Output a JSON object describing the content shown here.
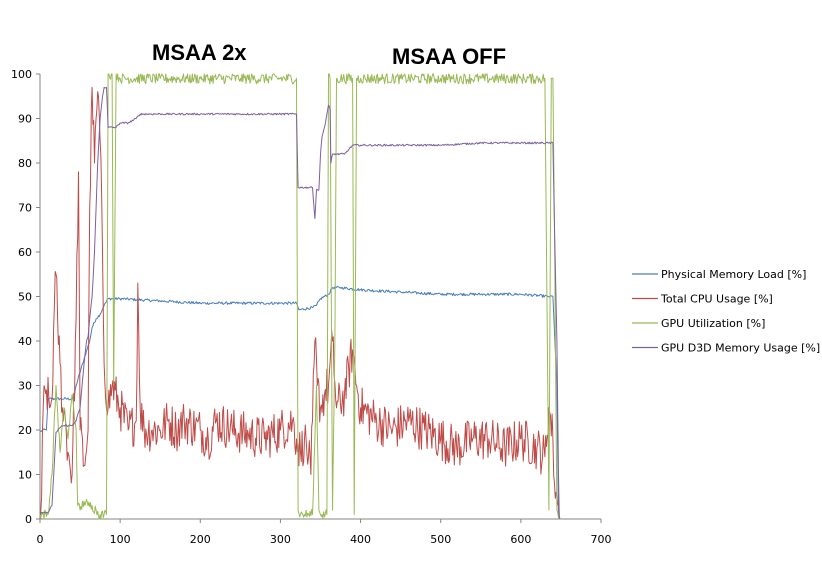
{
  "chart_data": {
    "type": "line",
    "title": "",
    "xlabel": "",
    "ylabel": "",
    "xlim": [
      0,
      700
    ],
    "ylim": [
      0,
      100
    ],
    "x_ticks": [
      0,
      100,
      200,
      300,
      400,
      500,
      600,
      700
    ],
    "y_ticks": [
      0,
      10,
      20,
      30,
      40,
      50,
      60,
      70,
      80,
      90,
      100
    ],
    "grid": false,
    "legend_position": "right",
    "annotations": [
      {
        "text": "MSAA 2x",
        "x": 140,
        "y": 110
      },
      {
        "text": "MSAA OFF",
        "x": 440,
        "y": 108
      }
    ],
    "series": [
      {
        "name": "Physical Memory Load [%]",
        "color": "#4a7ebb",
        "noise": 0.3,
        "points": [
          [
            0,
            19.5
          ],
          [
            3,
            20
          ],
          [
            8,
            20
          ],
          [
            10,
            27
          ],
          [
            30,
            27
          ],
          [
            42,
            27
          ],
          [
            45,
            30
          ],
          [
            55,
            36
          ],
          [
            62,
            40
          ],
          [
            65,
            43
          ],
          [
            70,
            45
          ],
          [
            75,
            46
          ],
          [
            80,
            48
          ],
          [
            85,
            49.5
          ],
          [
            100,
            49.5
          ],
          [
            150,
            49
          ],
          [
            200,
            48.5
          ],
          [
            250,
            48.5
          ],
          [
            300,
            48.5
          ],
          [
            320,
            48.5
          ],
          [
            323,
            47
          ],
          [
            340,
            47.5
          ],
          [
            345,
            48
          ],
          [
            350,
            49.5
          ],
          [
            360,
            50.5
          ],
          [
            365,
            52
          ],
          [
            375,
            52
          ],
          [
            400,
            51.5
          ],
          [
            450,
            51
          ],
          [
            500,
            50.5
          ],
          [
            550,
            50.5
          ],
          [
            600,
            50.5
          ],
          [
            635,
            50
          ],
          [
            640,
            50
          ],
          [
            645,
            30
          ],
          [
            647,
            0.5
          ],
          [
            650,
            0
          ]
        ]
      },
      {
        "name": "Total CPU Usage [%]",
        "color": "#be4b48",
        "noise": 5,
        "points": [
          [
            0,
            0
          ],
          [
            2,
            5
          ],
          [
            4,
            25
          ],
          [
            8,
            29
          ],
          [
            12,
            25
          ],
          [
            15,
            27
          ],
          [
            18,
            48
          ],
          [
            20,
            55
          ],
          [
            22,
            45
          ],
          [
            25,
            35
          ],
          [
            28,
            25
          ],
          [
            32,
            22
          ],
          [
            35,
            15
          ],
          [
            40,
            10
          ],
          [
            45,
            45
          ],
          [
            48,
            78
          ],
          [
            50,
            20
          ],
          [
            55,
            12
          ],
          [
            60,
            20
          ],
          [
            62,
            70
          ],
          [
            65,
            97
          ],
          [
            68,
            80
          ],
          [
            70,
            90
          ],
          [
            73,
            95
          ],
          [
            75,
            85
          ],
          [
            78,
            60
          ],
          [
            80,
            35
          ],
          [
            85,
            25
          ],
          [
            90,
            30
          ],
          [
            100,
            25
          ],
          [
            110,
            20
          ],
          [
            120,
            22
          ],
          [
            122,
            53
          ],
          [
            125,
            25
          ],
          [
            130,
            20
          ],
          [
            140,
            20
          ],
          [
            150,
            20
          ],
          [
            160,
            22
          ],
          [
            170,
            20
          ],
          [
            180,
            22
          ],
          [
            200,
            20
          ],
          [
            210,
            18
          ],
          [
            220,
            22
          ],
          [
            240,
            20
          ],
          [
            260,
            19
          ],
          [
            280,
            18
          ],
          [
            300,
            20
          ],
          [
            315,
            22
          ],
          [
            320,
            18
          ],
          [
            325,
            15
          ],
          [
            330,
            18
          ],
          [
            335,
            14
          ],
          [
            338,
            10
          ],
          [
            340,
            22
          ],
          [
            343,
            40
          ],
          [
            346,
            30
          ],
          [
            350,
            25
          ],
          [
            355,
            28
          ],
          [
            360,
            30
          ],
          [
            365,
            40
          ],
          [
            370,
            25
          ],
          [
            380,
            28
          ],
          [
            390,
            38
          ],
          [
            395,
            30
          ],
          [
            400,
            25
          ],
          [
            420,
            22
          ],
          [
            440,
            20
          ],
          [
            460,
            22
          ],
          [
            480,
            20
          ],
          [
            500,
            18
          ],
          [
            520,
            16
          ],
          [
            540,
            18
          ],
          [
            560,
            18
          ],
          [
            580,
            16
          ],
          [
            600,
            18
          ],
          [
            620,
            16
          ],
          [
            630,
            14
          ],
          [
            635,
            25
          ],
          [
            640,
            18
          ],
          [
            642,
            8
          ],
          [
            645,
            5
          ],
          [
            648,
            0.5
          ],
          [
            650,
            0
          ]
        ]
      },
      {
        "name": "GPU Utilization [%]",
        "color": "#98b954",
        "noise": 1.2,
        "points": [
          [
            0,
            1
          ],
          [
            10,
            1
          ],
          [
            15,
            10
          ],
          [
            20,
            30
          ],
          [
            25,
            15
          ],
          [
            30,
            25
          ],
          [
            35,
            18
          ],
          [
            40,
            28
          ],
          [
            45,
            20
          ],
          [
            47,
            3
          ],
          [
            50,
            2
          ],
          [
            55,
            4
          ],
          [
            60,
            3
          ],
          [
            65,
            3
          ],
          [
            70,
            2
          ],
          [
            75,
            1
          ],
          [
            80,
            1
          ],
          [
            83,
            1
          ],
          [
            85,
            100
          ],
          [
            90,
            100
          ],
          [
            92,
            30
          ],
          [
            95,
            100
          ],
          [
            100,
            99
          ],
          [
            150,
            99
          ],
          [
            200,
            99
          ],
          [
            250,
            99
          ],
          [
            300,
            99
          ],
          [
            320,
            99
          ],
          [
            322,
            2
          ],
          [
            325,
            1
          ],
          [
            330,
            1
          ],
          [
            340,
            1
          ],
          [
            345,
            30
          ],
          [
            348,
            2
          ],
          [
            352,
            1
          ],
          [
            358,
            1
          ],
          [
            360,
            100
          ],
          [
            362,
            99
          ],
          [
            365,
            2
          ],
          [
            368,
            40
          ],
          [
            370,
            99
          ],
          [
            390,
            99
          ],
          [
            392,
            1
          ],
          [
            395,
            99
          ],
          [
            400,
            99
          ],
          [
            450,
            99
          ],
          [
            500,
            99
          ],
          [
            550,
            99
          ],
          [
            600,
            99
          ],
          [
            630,
            99
          ],
          [
            635,
            2
          ],
          [
            638,
            99
          ],
          [
            640,
            99
          ],
          [
            642,
            65
          ],
          [
            645,
            2
          ],
          [
            648,
            0.5
          ],
          [
            650,
            0
          ]
        ]
      },
      {
        "name": "GPU D3D Memory Usage [%]",
        "color": "#7d60a0",
        "noise": 0.2,
        "points": [
          [
            0,
            1.5
          ],
          [
            10,
            1.5
          ],
          [
            15,
            3
          ],
          [
            20,
            19.5
          ],
          [
            25,
            20.5
          ],
          [
            30,
            21
          ],
          [
            40,
            21
          ],
          [
            45,
            22
          ],
          [
            48,
            24
          ],
          [
            50,
            25
          ],
          [
            55,
            35
          ],
          [
            58,
            40
          ],
          [
            60,
            41
          ],
          [
            62,
            45
          ],
          [
            65,
            50
          ],
          [
            68,
            60
          ],
          [
            70,
            70
          ],
          [
            72,
            80
          ],
          [
            75,
            90
          ],
          [
            78,
            95
          ],
          [
            80,
            97
          ],
          [
            83,
            97
          ],
          [
            85,
            88
          ],
          [
            95,
            88
          ],
          [
            100,
            89
          ],
          [
            110,
            89
          ],
          [
            120,
            90
          ],
          [
            125,
            91
          ],
          [
            150,
            91
          ],
          [
            200,
            91
          ],
          [
            250,
            91
          ],
          [
            300,
            91
          ],
          [
            320,
            91
          ],
          [
            322,
            74.5
          ],
          [
            330,
            74.5
          ],
          [
            340,
            74.5
          ],
          [
            343,
            67.5
          ],
          [
            345,
            74
          ],
          [
            348,
            74
          ],
          [
            350,
            82
          ],
          [
            352,
            86
          ],
          [
            355,
            88
          ],
          [
            360,
            93
          ],
          [
            362,
            92
          ],
          [
            363,
            80
          ],
          [
            365,
            82
          ],
          [
            370,
            82
          ],
          [
            380,
            82
          ],
          [
            385,
            83
          ],
          [
            390,
            84
          ],
          [
            400,
            84
          ],
          [
            450,
            84
          ],
          [
            500,
            84
          ],
          [
            550,
            84.5
          ],
          [
            600,
            84.5
          ],
          [
            635,
            84.5
          ],
          [
            640,
            84.5
          ],
          [
            642,
            65.5
          ],
          [
            645,
            40
          ],
          [
            647,
            10
          ],
          [
            648,
            0
          ]
        ]
      }
    ]
  }
}
